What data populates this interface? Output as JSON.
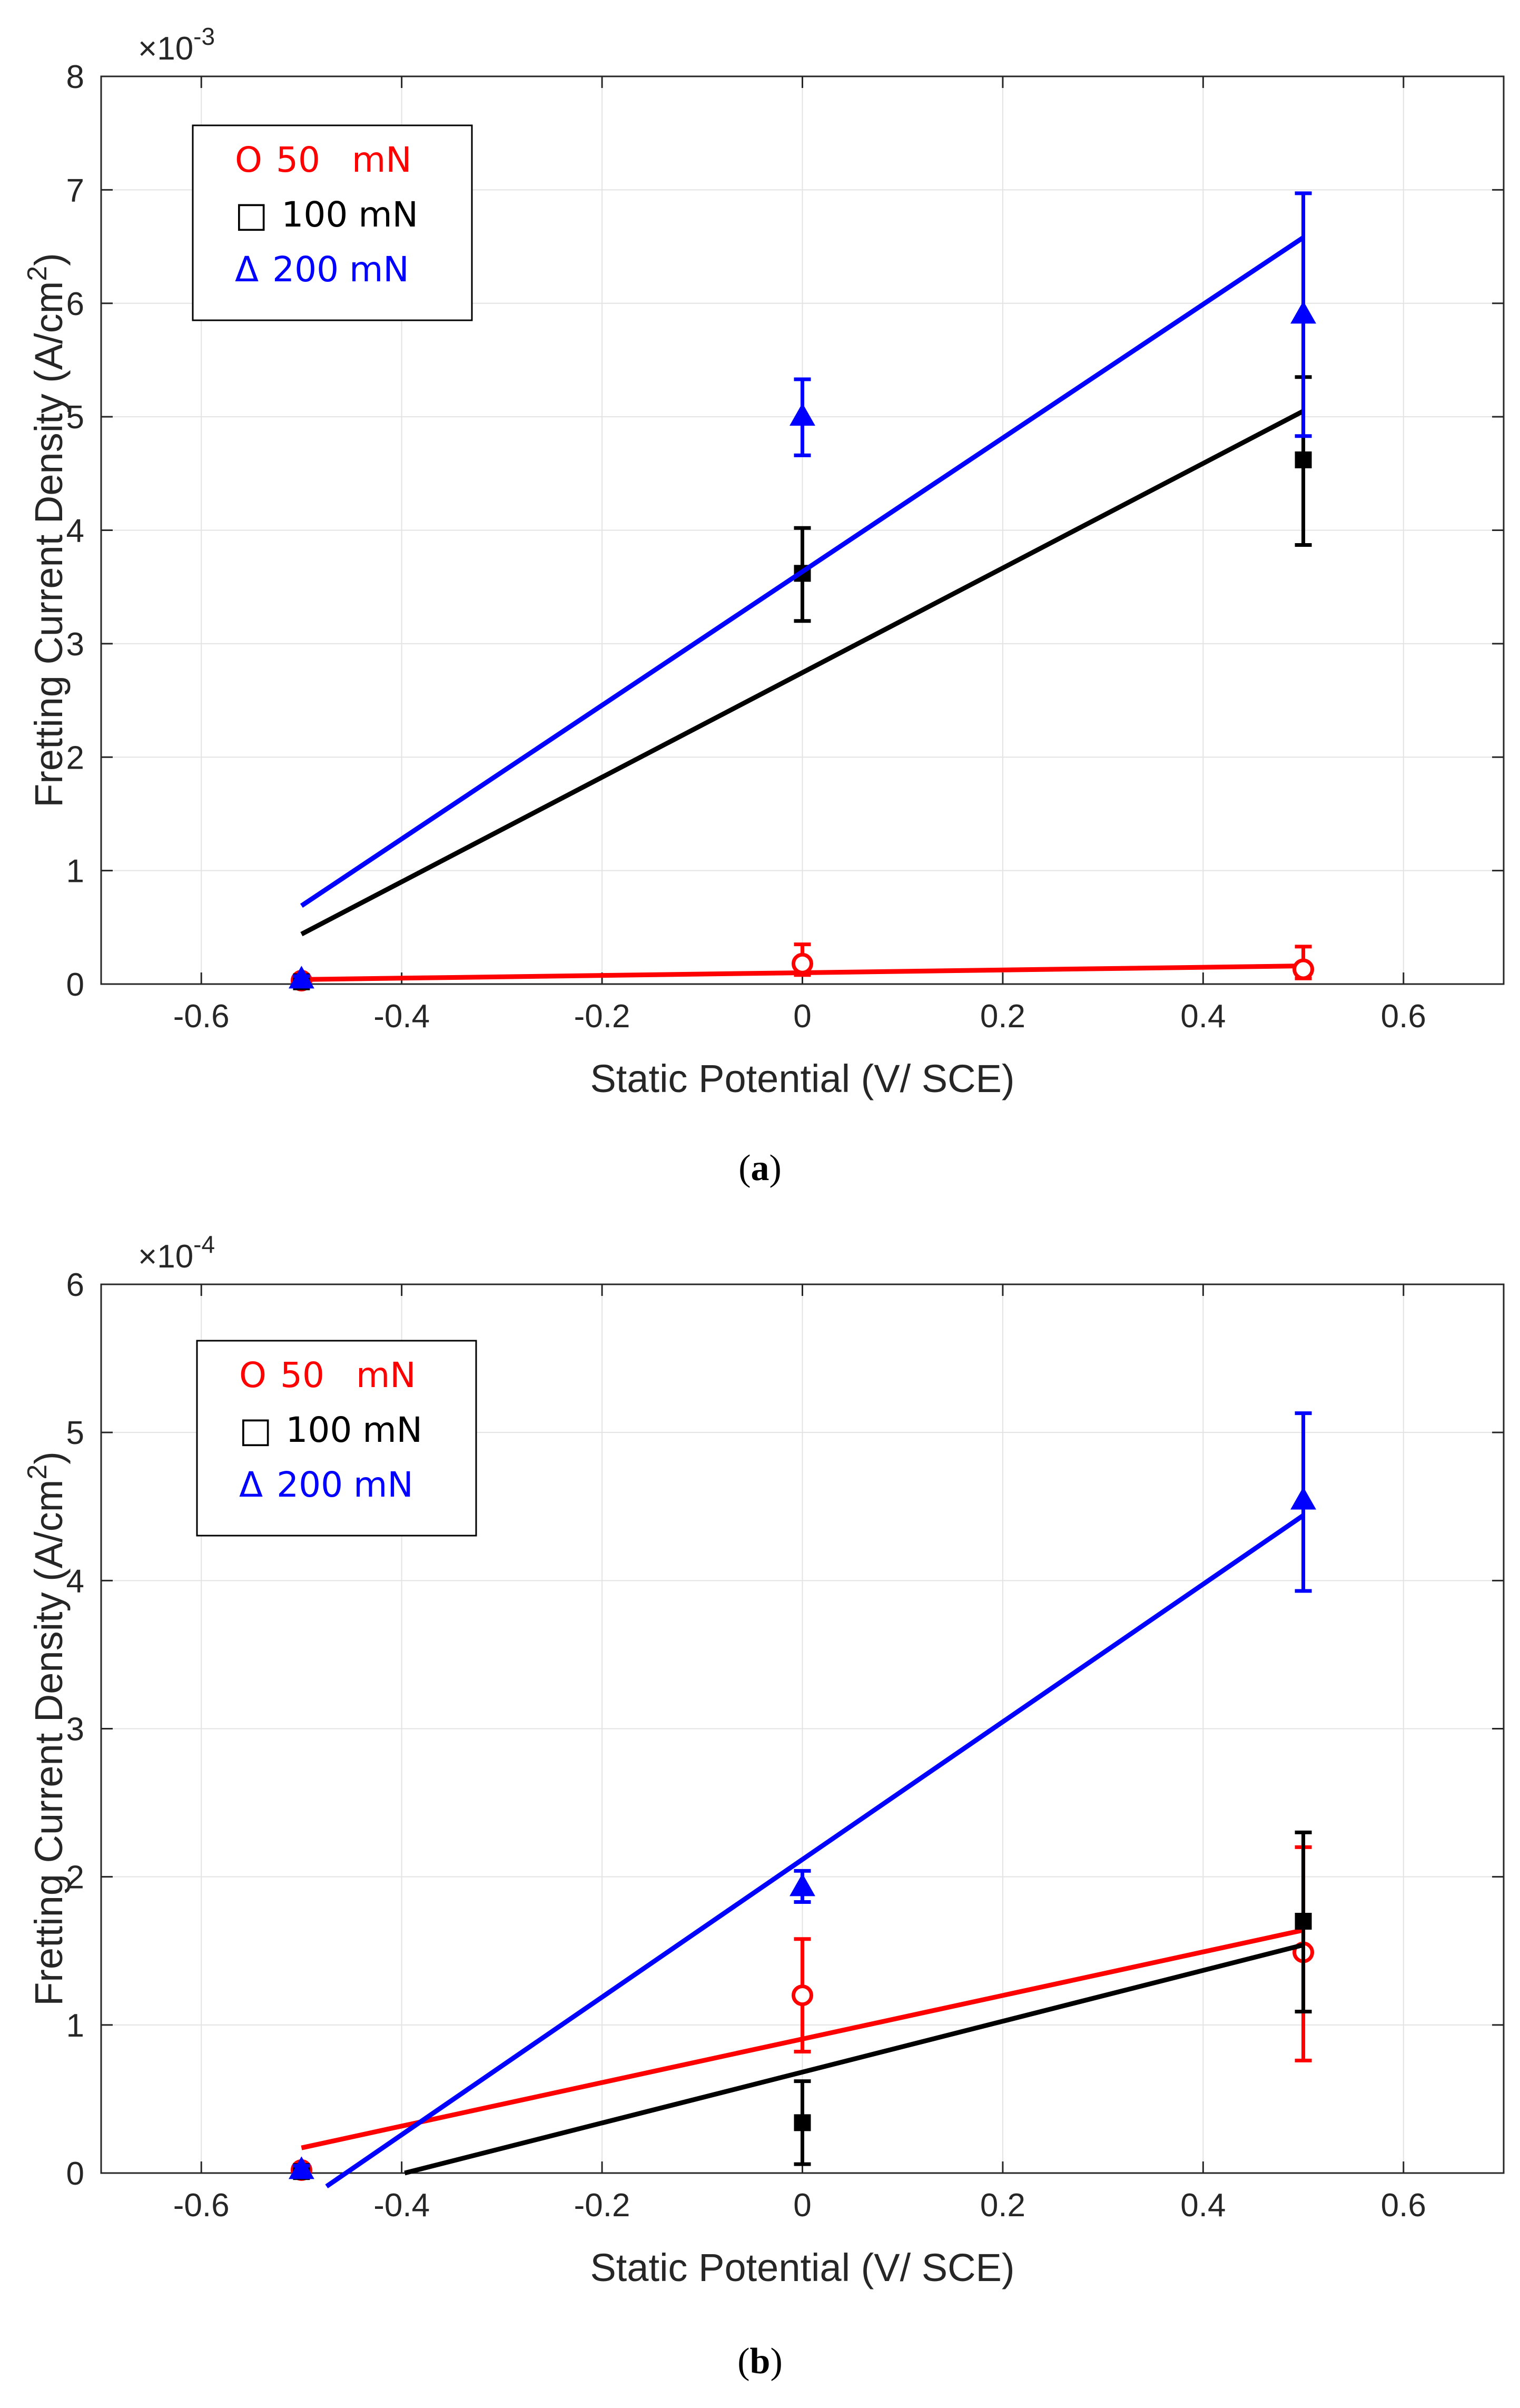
{
  "chart_data": [
    {
      "type": "scatter",
      "panel": "(a)",
      "panel_letter": "a",
      "exponent_base": "×10",
      "exponent": "-3",
      "xlabel": "Static Potential (V/ SCE)",
      "ylabel": "Fretting Current Density (A/cm",
      "ylabel_superscript": "2",
      "ylabel_close": ")",
      "xlim": [
        -0.7,
        0.7
      ],
      "ylim": [
        0,
        8
      ],
      "xticks": [
        -0.6,
        -0.4,
        -0.2,
        0,
        0.2,
        0.4,
        0.6
      ],
      "xtick_labels": [
        "-0.6",
        "-0.4",
        "-0.2",
        "0",
        "0.2",
        "0.4",
        "0.6"
      ],
      "yticks": [
        0,
        1,
        2,
        3,
        4,
        5,
        6,
        7,
        8
      ],
      "ytick_labels": [
        "0",
        "1",
        "2",
        "3",
        "4",
        "5",
        "6",
        "7",
        "8"
      ],
      "grid": true,
      "legend_position": "top-left",
      "series": [
        {
          "name": "50 mN",
          "legend_symbol": "O",
          "label_num": "50",
          "label_unit": "mN",
          "color": "#ff0000",
          "marker": "circle",
          "x": [
            -0.5,
            0,
            0.5
          ],
          "y": [
            0.03,
            0.18,
            0.13
          ],
          "err_low": [
            0.0,
            0.08,
            0.05
          ],
          "err_high": [
            0.05,
            0.35,
            0.33
          ],
          "fit": {
            "x": [
              -0.5,
              0.5
            ],
            "y": [
              0.04,
              0.16
            ]
          }
        },
        {
          "name": "100 mN",
          "legend_symbol": "□",
          "label_num": "100",
          "label_unit": "mN",
          "color": "#000000",
          "marker": "square",
          "x": [
            -0.5,
            0,
            0.5
          ],
          "y": [
            0.02,
            3.62,
            4.62
          ],
          "err_low": [
            0.0,
            3.2,
            3.87
          ],
          "err_high": [
            0.04,
            4.02,
            5.35
          ],
          "fit": {
            "x": [
              -0.5,
              0.5
            ],
            "y": [
              0.44,
              5.05
            ]
          }
        },
        {
          "name": "200 mN",
          "legend_symbol": "Δ",
          "label_num": "200",
          "label_unit": "mN",
          "color": "#0000ff",
          "marker": "triangle",
          "x": [
            -0.5,
            0,
            0.5
          ],
          "y": [
            0.04,
            5.0,
            5.9
          ],
          "err_low": [
            0.0,
            4.66,
            4.83
          ],
          "err_high": [
            0.07,
            5.33,
            6.97
          ],
          "fit": {
            "x": [
              -0.5,
              0.5
            ],
            "y": [
              0.69,
              6.58
            ]
          }
        }
      ]
    },
    {
      "type": "scatter",
      "panel": "(b)",
      "panel_letter": "b",
      "exponent_base": "×10",
      "exponent": "-4",
      "xlabel": "Static Potential (V/ SCE)",
      "ylabel": "Fretting Current Density (A/cm",
      "ylabel_superscript": "2",
      "ylabel_close": ")",
      "xlim": [
        -0.7,
        0.7
      ],
      "ylim": [
        0,
        6
      ],
      "xticks": [
        -0.6,
        -0.4,
        -0.2,
        0,
        0.2,
        0.4,
        0.6
      ],
      "xtick_labels": [
        "-0.6",
        "-0.4",
        "-0.2",
        "0",
        "0.2",
        "0.4",
        "0.6"
      ],
      "yticks": [
        0,
        1,
        2,
        3,
        4,
        5,
        6
      ],
      "ytick_labels": [
        "0",
        "1",
        "2",
        "3",
        "4",
        "5",
        "6"
      ],
      "grid": true,
      "legend_position": "top-left",
      "series": [
        {
          "name": "50 mN",
          "legend_symbol": "O",
          "label_num": "50",
          "label_unit": "mN",
          "color": "#ff0000",
          "marker": "circle",
          "x": [
            -0.5,
            0,
            0.5
          ],
          "y": [
            0.02,
            1.2,
            1.49
          ],
          "err_low": [
            0.0,
            0.82,
            0.76
          ],
          "err_high": [
            0.04,
            1.58,
            2.2
          ],
          "fit": {
            "x": [
              -0.5,
              0.5
            ],
            "y": [
              0.17,
              1.64
            ]
          }
        },
        {
          "name": "100 mN",
          "legend_symbol": "□",
          "label_num": "100",
          "label_unit": "mN",
          "color": "#000000",
          "marker": "square",
          "x": [
            -0.5,
            0,
            0.5
          ],
          "y": [
            0.01,
            0.34,
            1.7
          ],
          "err_low": [
            0.0,
            0.06,
            1.09
          ],
          "err_high": [
            0.03,
            0.62,
            2.3
          ],
          "fit": {
            "x": [
              -0.397,
              0.5
            ],
            "y": [
              0.0,
              1.54
            ]
          }
        },
        {
          "name": "200 mN",
          "legend_symbol": "Δ",
          "label_num": "200",
          "label_unit": "mN",
          "color": "#0000ff",
          "marker": "triangle",
          "x": [
            -0.5,
            0,
            0.5
          ],
          "y": [
            0.02,
            1.93,
            4.54
          ],
          "err_low": [
            0.0,
            1.83,
            3.93
          ],
          "err_high": [
            0.05,
            2.04,
            5.13
          ],
          "fit": {
            "x": [
              -0.475,
              0.5
            ],
            "y": [
              -0.09,
              4.44
            ]
          }
        }
      ]
    }
  ]
}
